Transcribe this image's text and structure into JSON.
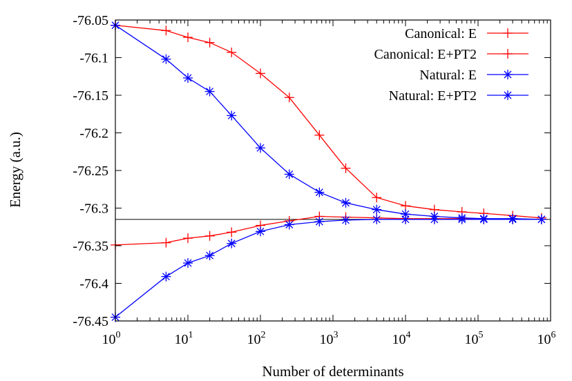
{
  "chart_data": {
    "type": "line",
    "xlabel": "Number of determinants",
    "ylabel": "Energy (a.u.)",
    "x_scale": "log",
    "xlim": [
      1,
      1000000
    ],
    "ylim": [
      -76.45,
      -76.05
    ],
    "x_ticks": [
      {
        "base": "10",
        "exp": "0",
        "value": 1
      },
      {
        "base": "10",
        "exp": "1",
        "value": 10
      },
      {
        "base": "10",
        "exp": "2",
        "value": 100
      },
      {
        "base": "10",
        "exp": "3",
        "value": 1000
      },
      {
        "base": "10",
        "exp": "4",
        "value": 10000
      },
      {
        "base": "10",
        "exp": "5",
        "value": 100000
      },
      {
        "base": "10",
        "exp": "6",
        "value": 1000000
      }
    ],
    "y_ticks": [
      "-76.05",
      "-76.1",
      "-76.15",
      "-76.2",
      "-76.25",
      "-76.3",
      "-76.35",
      "-76.4",
      "-76.45"
    ],
    "reference_line": -76.315,
    "grid": false,
    "legend_position": "top-right",
    "series": [
      {
        "name": "Canonical: E",
        "color": "#ff0000",
        "marker": "plus",
        "x": [
          1,
          5,
          10,
          20,
          40,
          100,
          250,
          650,
          1500,
          4000,
          10000,
          25000,
          60000,
          120000,
          300000,
          750000
        ],
        "y": [
          -76.057,
          -76.064,
          -76.073,
          -76.08,
          -76.093,
          -76.121,
          -76.153,
          -76.203,
          -76.247,
          -76.286,
          -76.297,
          -76.302,
          -76.305,
          -76.307,
          -76.31,
          -76.313
        ]
      },
      {
        "name": "Canonical: E+PT2",
        "color": "#ff0000",
        "marker": "plus",
        "x": [
          1,
          5,
          10,
          20,
          40,
          100,
          250,
          650,
          1500,
          4000,
          10000,
          25000,
          60000,
          120000,
          300000,
          750000
        ],
        "y": [
          -76.349,
          -76.346,
          -76.34,
          -76.337,
          -76.332,
          -76.323,
          -76.317,
          -76.311,
          -76.312,
          -76.313,
          -76.314,
          -76.314,
          -76.314,
          -76.315,
          -76.315,
          -76.315
        ]
      },
      {
        "name": "Natural: E",
        "color": "#0000ff",
        "marker": "star",
        "x": [
          1,
          5,
          10,
          20,
          40,
          100,
          250,
          650,
          1500,
          4000,
          10000,
          25000,
          60000,
          120000,
          300000,
          750000
        ],
        "y": [
          -76.057,
          -76.102,
          -76.127,
          -76.145,
          -76.177,
          -76.22,
          -76.255,
          -76.279,
          -76.293,
          -76.302,
          -76.308,
          -76.311,
          -76.313,
          -76.314,
          -76.314,
          -76.315
        ]
      },
      {
        "name": "Natural: E+PT2",
        "color": "#0000ff",
        "marker": "star",
        "x": [
          1,
          5,
          10,
          20,
          40,
          100,
          250,
          650,
          1500,
          4000,
          10000,
          25000,
          60000,
          120000,
          300000,
          750000
        ],
        "y": [
          -76.445,
          -76.391,
          -76.373,
          -76.363,
          -76.347,
          -76.331,
          -76.322,
          -76.318,
          -76.316,
          -76.315,
          -76.315,
          -76.315,
          -76.315,
          -76.315,
          -76.315,
          -76.315
        ]
      }
    ]
  }
}
